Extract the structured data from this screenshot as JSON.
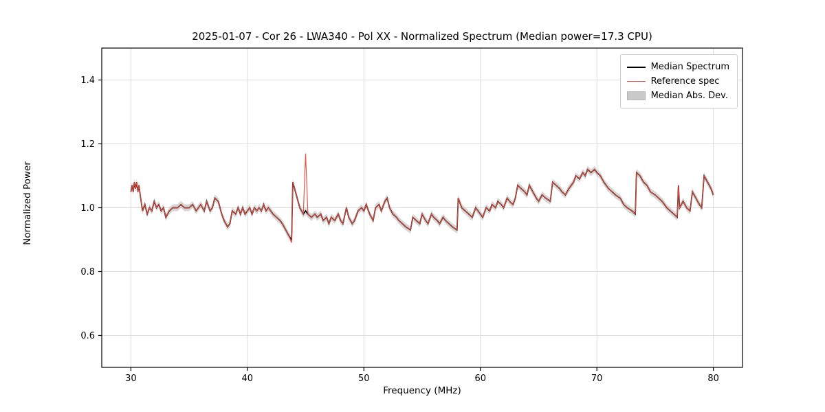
{
  "page": {
    "background": "#ffffff"
  },
  "chart_data": {
    "type": "line",
    "title": "2025-01-07 - Cor 26 - LWA340 - Pol XX - Normalized Spectrum (Median power=17.3 CPU)",
    "xlabel": "Frequency (MHz)",
    "ylabel": "Normalized Power",
    "xlim": [
      27.5,
      82.5
    ],
    "ylim": [
      0.5,
      1.5
    ],
    "xticks": [
      30,
      40,
      50,
      60,
      70,
      80
    ],
    "xtick_labels": [
      "30",
      "40",
      "50",
      "60",
      "70",
      "80"
    ],
    "yticks": [
      0.6,
      0.8,
      1.0,
      1.2,
      1.4
    ],
    "ytick_labels": [
      "0.6",
      "0.8",
      "1.0",
      "1.2",
      "1.4"
    ],
    "grid": true,
    "legend_position": "upper right",
    "colors": {
      "median": "#000000",
      "reference": "#e74c3c",
      "band": "#c9c9c9",
      "grid": "#dcdcdc",
      "axis": "#000000"
    },
    "mad_band_halfwidth": 0.011,
    "legend": [
      {
        "label": "Median Spectrum",
        "swatch": "line",
        "color": "#000000",
        "thickness": 2
      },
      {
        "label": "Reference spec",
        "swatch": "line",
        "color": "#e74c3c",
        "thickness": 1.5
      },
      {
        "label": "Median Abs. Dev.",
        "swatch": "patch",
        "color": "#c9c9c9",
        "thickness": 0
      }
    ],
    "series": [
      {
        "name": "Median Spectrum",
        "color": "#000000",
        "points": [
          [
            30.0,
            1.05
          ],
          [
            30.1,
            1.07
          ],
          [
            30.2,
            1.05
          ],
          [
            30.3,
            1.08
          ],
          [
            30.4,
            1.06
          ],
          [
            30.5,
            1.08
          ],
          [
            30.6,
            1.05
          ],
          [
            30.7,
            1.07
          ],
          [
            30.8,
            1.04
          ],
          [
            31.0,
            0.99
          ],
          [
            31.2,
            1.01
          ],
          [
            31.4,
            0.98
          ],
          [
            31.6,
            1.0
          ],
          [
            31.8,
            0.99
          ],
          [
            32.0,
            1.02
          ],
          [
            32.2,
            1.0
          ],
          [
            32.4,
            1.01
          ],
          [
            32.6,
            0.99
          ],
          [
            32.8,
            1.0
          ],
          [
            33.0,
            0.97
          ],
          [
            33.3,
            0.99
          ],
          [
            33.6,
            1.0
          ],
          [
            34.0,
            1.0
          ],
          [
            34.3,
            1.01
          ],
          [
            34.6,
            1.0
          ],
          [
            35.0,
            1.0
          ],
          [
            35.3,
            1.01
          ],
          [
            35.6,
            0.99
          ],
          [
            36.0,
            1.01
          ],
          [
            36.3,
            0.99
          ],
          [
            36.5,
            1.02
          ],
          [
            36.8,
            0.99
          ],
          [
            37.0,
            1.0
          ],
          [
            37.2,
            1.03
          ],
          [
            37.5,
            1.02
          ],
          [
            37.8,
            0.98
          ],
          [
            38.0,
            0.96
          ],
          [
            38.3,
            0.94
          ],
          [
            38.5,
            0.95
          ],
          [
            38.7,
            0.99
          ],
          [
            39.0,
            0.98
          ],
          [
            39.2,
            1.0
          ],
          [
            39.4,
            0.98
          ],
          [
            39.6,
            1.0
          ],
          [
            39.8,
            0.98
          ],
          [
            40.0,
            0.99
          ],
          [
            40.2,
            1.0
          ],
          [
            40.4,
            0.98
          ],
          [
            40.6,
            1.0
          ],
          [
            40.8,
            0.99
          ],
          [
            41.0,
            1.0
          ],
          [
            41.2,
            0.99
          ],
          [
            41.4,
            1.01
          ],
          [
            41.6,
            0.99
          ],
          [
            41.8,
            1.0
          ],
          [
            42.0,
            0.99
          ],
          [
            42.2,
            0.98
          ],
          [
            42.5,
            0.97
          ],
          [
            42.8,
            0.96
          ],
          [
            43.0,
            0.95
          ],
          [
            43.3,
            0.93
          ],
          [
            43.6,
            0.91
          ],
          [
            43.8,
            0.9
          ],
          [
            43.9,
            1.08
          ],
          [
            44.2,
            1.04
          ],
          [
            44.5,
            1.0
          ],
          [
            44.8,
            0.98
          ],
          [
            45.0,
            0.99
          ],
          [
            45.2,
            0.98
          ],
          [
            45.5,
            0.97
          ],
          [
            45.8,
            0.98
          ],
          [
            46.0,
            0.97
          ],
          [
            46.3,
            0.98
          ],
          [
            46.5,
            0.96
          ],
          [
            46.8,
            0.97
          ],
          [
            47.0,
            0.95
          ],
          [
            47.2,
            0.97
          ],
          [
            47.5,
            0.96
          ],
          [
            47.8,
            0.98
          ],
          [
            48.0,
            0.96
          ],
          [
            48.2,
            0.95
          ],
          [
            48.5,
            1.0
          ],
          [
            48.7,
            0.97
          ],
          [
            49.0,
            0.95
          ],
          [
            49.2,
            0.96
          ],
          [
            49.5,
            0.99
          ],
          [
            49.8,
            1.0
          ],
          [
            50.0,
            0.99
          ],
          [
            50.2,
            1.01
          ],
          [
            50.5,
            0.98
          ],
          [
            50.8,
            0.96
          ],
          [
            51.0,
            1.0
          ],
          [
            51.3,
            1.01
          ],
          [
            51.5,
            0.99
          ],
          [
            51.8,
            1.02
          ],
          [
            52.0,
            1.03
          ],
          [
            52.2,
            1.0
          ],
          [
            52.5,
            0.98
          ],
          [
            52.8,
            0.97
          ],
          [
            53.0,
            0.96
          ],
          [
            53.3,
            0.95
          ],
          [
            53.6,
            0.94
          ],
          [
            54.0,
            0.93
          ],
          [
            54.2,
            0.97
          ],
          [
            54.5,
            0.96
          ],
          [
            54.8,
            0.95
          ],
          [
            55.0,
            0.98
          ],
          [
            55.3,
            0.96
          ],
          [
            55.5,
            0.95
          ],
          [
            55.8,
            0.98
          ],
          [
            56.0,
            0.97
          ],
          [
            56.3,
            0.96
          ],
          [
            56.5,
            0.95
          ],
          [
            56.8,
            0.97
          ],
          [
            57.0,
            0.96
          ],
          [
            57.3,
            0.95
          ],
          [
            57.6,
            0.94
          ],
          [
            58.0,
            0.93
          ],
          [
            58.1,
            1.03
          ],
          [
            58.4,
            1.0
          ],
          [
            58.7,
            0.99
          ],
          [
            59.0,
            0.98
          ],
          [
            59.3,
            0.97
          ],
          [
            59.6,
            1.0
          ],
          [
            60.0,
            0.98
          ],
          [
            60.2,
            0.97
          ],
          [
            60.5,
            1.0
          ],
          [
            60.8,
            0.99
          ],
          [
            61.0,
            1.01
          ],
          [
            61.3,
            1.0
          ],
          [
            61.5,
            1.02
          ],
          [
            61.8,
            1.01
          ],
          [
            62.0,
            1.0
          ],
          [
            62.3,
            1.03
          ],
          [
            62.5,
            1.02
          ],
          [
            62.8,
            1.01
          ],
          [
            63.0,
            1.03
          ],
          [
            63.2,
            1.07
          ],
          [
            63.5,
            1.06
          ],
          [
            63.8,
            1.05
          ],
          [
            64.0,
            1.04
          ],
          [
            64.2,
            1.07
          ],
          [
            64.5,
            1.05
          ],
          [
            64.8,
            1.03
          ],
          [
            65.0,
            1.02
          ],
          [
            65.3,
            1.04
          ],
          [
            65.6,
            1.03
          ],
          [
            66.0,
            1.02
          ],
          [
            66.2,
            1.08
          ],
          [
            66.5,
            1.07
          ],
          [
            66.8,
            1.06
          ],
          [
            67.0,
            1.05
          ],
          [
            67.3,
            1.04
          ],
          [
            67.6,
            1.06
          ],
          [
            68.0,
            1.08
          ],
          [
            68.2,
            1.1
          ],
          [
            68.5,
            1.09
          ],
          [
            68.8,
            1.11
          ],
          [
            69.0,
            1.1
          ],
          [
            69.2,
            1.12
          ],
          [
            69.5,
            1.11
          ],
          [
            69.8,
            1.12
          ],
          [
            70.0,
            1.11
          ],
          [
            70.3,
            1.1
          ],
          [
            70.6,
            1.08
          ],
          [
            71.0,
            1.06
          ],
          [
            71.3,
            1.05
          ],
          [
            71.6,
            1.04
          ],
          [
            72.0,
            1.03
          ],
          [
            72.3,
            1.01
          ],
          [
            72.6,
            1.0
          ],
          [
            73.0,
            0.99
          ],
          [
            73.3,
            0.98
          ],
          [
            73.4,
            1.11
          ],
          [
            73.7,
            1.1
          ],
          [
            74.0,
            1.08
          ],
          [
            74.3,
            1.07
          ],
          [
            74.6,
            1.05
          ],
          [
            75.0,
            1.04
          ],
          [
            75.3,
            1.03
          ],
          [
            75.6,
            1.02
          ],
          [
            76.0,
            1.0
          ],
          [
            76.3,
            0.99
          ],
          [
            76.6,
            0.98
          ],
          [
            76.9,
            0.97
          ],
          [
            77.0,
            1.07
          ],
          [
            77.1,
            1.0
          ],
          [
            77.4,
            1.02
          ],
          [
            77.7,
            1.0
          ],
          [
            78.0,
            0.99
          ],
          [
            78.2,
            1.05
          ],
          [
            78.5,
            1.03
          ],
          [
            78.8,
            1.01
          ],
          [
            79.0,
            1.0
          ],
          [
            79.2,
            1.1
          ],
          [
            79.5,
            1.08
          ],
          [
            79.8,
            1.06
          ],
          [
            80.0,
            1.04
          ]
        ]
      },
      {
        "name": "Reference spec",
        "color": "#e74c3c",
        "base": "Median Spectrum",
        "override_points": [
          [
            43.8,
            0.89
          ],
          [
            45.0,
            1.17
          ]
        ]
      }
    ]
  }
}
